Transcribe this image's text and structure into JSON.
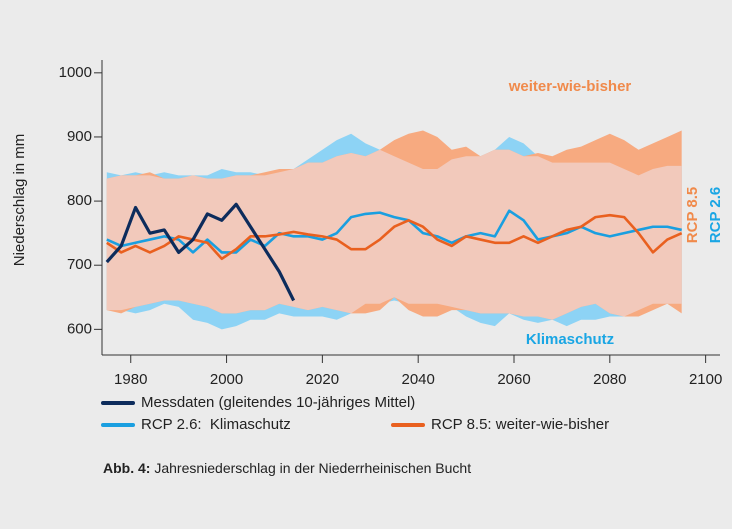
{
  "chart_data": {
    "type": "line",
    "y_label": "Niederschlag in mm",
    "x": [
      1975,
      1978,
      1981,
      1984,
      1987,
      1990,
      1993,
      1996,
      1999,
      2002,
      2005,
      2008,
      2011,
      2014,
      2017,
      2020,
      2023,
      2026,
      2029,
      2032,
      2035,
      2038,
      2041,
      2044,
      2047,
      2050,
      2053,
      2056,
      2059,
      2062,
      2065,
      2068,
      2071,
      2074,
      2077,
      2080,
      2083,
      2086,
      2089,
      2092,
      2095
    ],
    "xlim": [
      1974,
      2103
    ],
    "xticks": [
      1980,
      2000,
      2020,
      2040,
      2060,
      2080,
      2100
    ],
    "ylim": [
      560,
      1020
    ],
    "yticks": [
      600,
      700,
      800,
      900,
      1000
    ],
    "bands": [
      {
        "color": "#8dd3f5",
        "upper": [
          845,
          840,
          845,
          840,
          845,
          840,
          840,
          840,
          850,
          845,
          845,
          840,
          845,
          850,
          865,
          880,
          895,
          905,
          890,
          880,
          870,
          860,
          850,
          850,
          865,
          870,
          870,
          880,
          900,
          890,
          870,
          860,
          860,
          860,
          860,
          860,
          850,
          840,
          850,
          855,
          855
        ],
        "lower": [
          630,
          630,
          625,
          630,
          640,
          635,
          615,
          610,
          600,
          605,
          615,
          615,
          625,
          620,
          620,
          620,
          615,
          625,
          640,
          640,
          645,
          640,
          640,
          640,
          635,
          620,
          610,
          605,
          625,
          615,
          610,
          615,
          605,
          615,
          615,
          620,
          620,
          630,
          640,
          640,
          640
        ]
      },
      {
        "color": "#f7aa80",
        "upper": [
          835,
          840,
          840,
          845,
          835,
          835,
          840,
          835,
          835,
          840,
          840,
          845,
          850,
          850,
          860,
          860,
          870,
          875,
          870,
          880,
          895,
          905,
          910,
          900,
          880,
          885,
          870,
          880,
          880,
          870,
          875,
          870,
          880,
          885,
          895,
          905,
          895,
          880,
          890,
          900,
          910
        ],
        "lower": [
          630,
          625,
          635,
          640,
          645,
          645,
          640,
          635,
          625,
          625,
          630,
          630,
          640,
          635,
          630,
          635,
          630,
          625,
          625,
          630,
          650,
          630,
          620,
          620,
          630,
          630,
          625,
          625,
          625,
          620,
          620,
          615,
          625,
          635,
          640,
          625,
          620,
          620,
          630,
          640,
          625
        ]
      }
    ],
    "overlap_color": "#f2c9bb",
    "series": [
      {
        "name": "RCP 2.6:  Klimaschutz",
        "color": "#1a9fe0",
        "values": [
          740,
          730,
          735,
          740,
          745,
          740,
          720,
          740,
          720,
          720,
          740,
          730,
          750,
          745,
          745,
          740,
          750,
          775,
          780,
          782,
          775,
          770,
          750,
          745,
          735,
          745,
          750,
          745,
          785,
          770,
          740,
          745,
          750,
          760,
          750,
          745,
          750,
          755,
          760,
          760,
          755
        ]
      },
      {
        "name": "RCP 8.5: weiter-wie-bisher",
        "color": "#e9601f",
        "values": [
          735,
          720,
          730,
          720,
          730,
          745,
          740,
          735,
          710,
          725,
          745,
          745,
          748,
          752,
          748,
          745,
          740,
          725,
          725,
          740,
          760,
          770,
          760,
          740,
          730,
          745,
          740,
          735,
          735,
          745,
          735,
          745,
          755,
          760,
          775,
          778,
          775,
          750,
          720,
          740,
          750
        ]
      },
      {
        "name": "Messdaten (gleitendes 10-jähriges Mittel)",
        "color": "#0d2c5c",
        "values": [
          705,
          730,
          790,
          750,
          755,
          720,
          740,
          780,
          770,
          795,
          760,
          725,
          690,
          645,
          null,
          null,
          null,
          null,
          null,
          null,
          null,
          null,
          null,
          null,
          null,
          null,
          null,
          null,
          null,
          null,
          null,
          null,
          null,
          null,
          null,
          null,
          null,
          null,
          null,
          null,
          null
        ]
      }
    ],
    "annotations": [
      {
        "text": "weiter-wie-bisher",
        "color": "#f08a4b"
      },
      {
        "text": "Klimaschutz",
        "color": "#1aa6e4"
      },
      {
        "text": "RCP 8.5",
        "color": "#f08a4b"
      },
      {
        "text": "RCP 2.6",
        "color": "#1aa6e4"
      }
    ],
    "caption": {
      "label": "Abb. 4:",
      "text": " Jahresniederschlag in der Niederrheinischen Bucht"
    }
  }
}
